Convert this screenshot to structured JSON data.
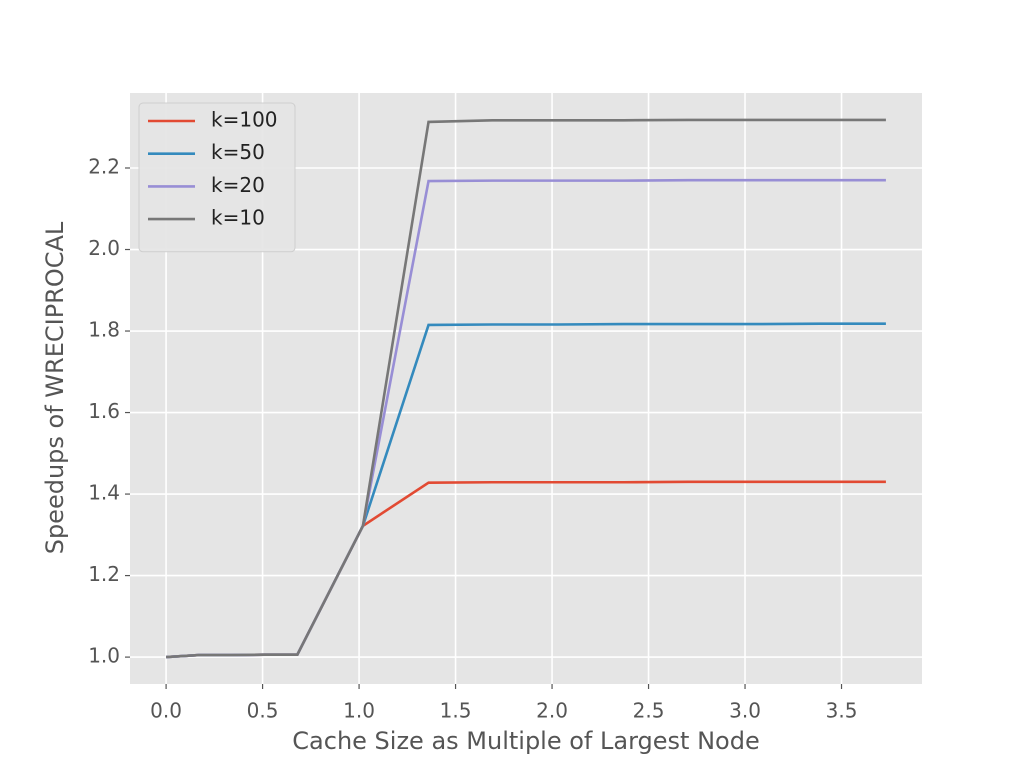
{
  "chart_data": {
    "type": "line",
    "xlabel": "Cache Size as Multiple of Largest Node",
    "ylabel": "Speedups of WRECIPROCAL",
    "x": [
      0,
      0.17,
      0.34,
      0.51,
      0.68,
      1.02,
      1.36,
      1.69,
      2.03,
      2.37,
      2.71,
      3.05,
      3.39,
      3.73
    ],
    "series": [
      {
        "name": "k=100",
        "color": "#E24A33",
        "values": [
          1.0,
          1.005,
          1.005,
          1.006,
          1.006,
          1.322,
          1.428,
          1.429,
          1.429,
          1.429,
          1.43,
          1.43,
          1.43,
          1.43
        ]
      },
      {
        "name": "k=50",
        "color": "#348ABD",
        "values": [
          1.0,
          1.005,
          1.005,
          1.006,
          1.006,
          1.322,
          1.815,
          1.816,
          1.816,
          1.817,
          1.817,
          1.817,
          1.818,
          1.818
        ]
      },
      {
        "name": "k=20",
        "color": "#988ED5",
        "values": [
          1.0,
          1.005,
          1.005,
          1.006,
          1.006,
          1.322,
          2.168,
          2.169,
          2.169,
          2.169,
          2.17,
          2.17,
          2.17,
          2.17
        ]
      },
      {
        "name": "k=10",
        "color": "#777777",
        "values": [
          1.0,
          1.005,
          1.005,
          1.006,
          1.006,
          1.322,
          2.313,
          2.317,
          2.317,
          2.317,
          2.318,
          2.318,
          2.318,
          2.318
        ]
      }
    ],
    "xlim": [
      -0.187,
      3.917
    ],
    "ylim": [
      0.934,
      2.384
    ],
    "xticks": [
      {
        "value": 0,
        "label": "0.0"
      },
      0.5,
      {
        "value": 1,
        "label": "1.0"
      },
      1.5,
      {
        "value": 2,
        "label": "2.0"
      },
      2.5,
      {
        "value": 3,
        "label": "3.0"
      },
      3.5
    ],
    "yticks": [
      {
        "value": 1,
        "label": "1.0"
      },
      1.2,
      1.4,
      1.6,
      1.8,
      {
        "value": 2,
        "label": "2.0"
      },
      2.2
    ],
    "grid": true,
    "legend": "upper-left"
  }
}
